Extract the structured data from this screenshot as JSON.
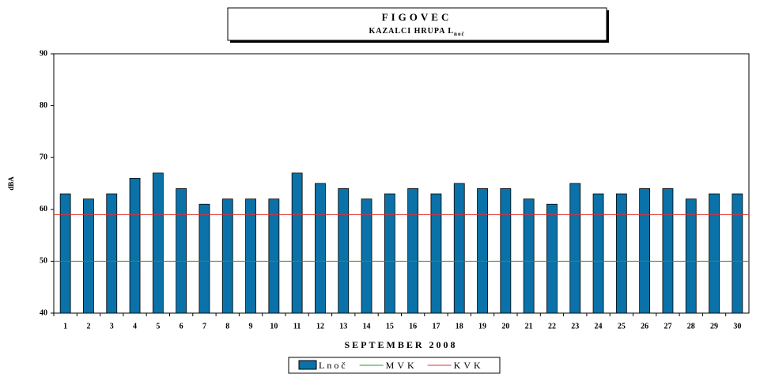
{
  "chart_data": {
    "type": "bar",
    "title": "FIGOVEC",
    "subtitle": "KAZALCI HRUPA L",
    "subtitle_subscript": "noč",
    "y_label": "dBA",
    "x_label": "SEPTEMBER 2008",
    "categories": [
      "1",
      "2",
      "3",
      "4",
      "5",
      "6",
      "7",
      "8",
      "9",
      "10",
      "11",
      "12",
      "13",
      "14",
      "15",
      "16",
      "17",
      "18",
      "19",
      "20",
      "21",
      "22",
      "23",
      "24",
      "25",
      "26",
      "27",
      "28",
      "29",
      "30"
    ],
    "series": [
      {
        "name": "Lnoč",
        "color": "#0a72a8",
        "values": [
          63,
          62,
          63,
          66,
          67,
          64,
          61,
          62,
          62,
          62,
          67,
          65,
          64,
          62,
          63,
          64,
          63,
          65,
          64,
          64,
          62,
          61,
          65,
          63,
          63,
          64,
          64,
          62,
          63,
          63
        ]
      }
    ],
    "reference_lines": [
      {
        "name": "MVK",
        "color": "#2a9a2a",
        "value": 50
      },
      {
        "name": "KVK",
        "color": "#e03030",
        "value": 59
      }
    ],
    "ylim": [
      40,
      90
    ],
    "yticks": [
      40,
      50,
      60,
      70,
      80,
      90
    ],
    "grid": false
  }
}
